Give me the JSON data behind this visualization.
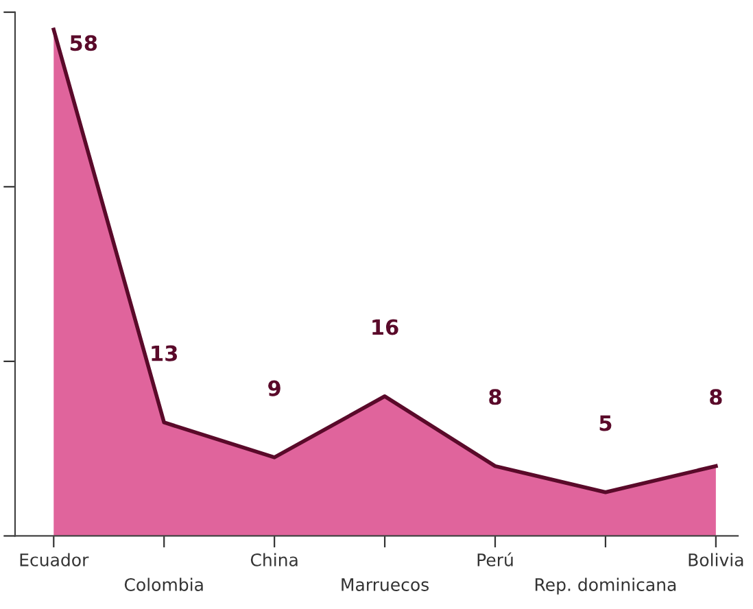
{
  "chart_data": {
    "type": "area",
    "categories": [
      "Ecuador",
      "Colombia",
      "China",
      "Marruecos",
      "Perú",
      "Rep. dominicana",
      "Bolivia"
    ],
    "series": [
      {
        "color": "#e0649c",
        "values": [
          58,
          13,
          9,
          16,
          8,
          5,
          8
        ]
      }
    ],
    "ylim": [
      0,
      60
    ],
    "yticks": [
      {
        "value": 0,
        "label": null
      },
      {
        "value": 20,
        "label": null
      },
      {
        "value": 40,
        "label": null
      },
      {
        "value": 60,
        "label": null
      }
    ],
    "tick_labels": "x",
    "data_labels": true,
    "grid": false
  }
}
